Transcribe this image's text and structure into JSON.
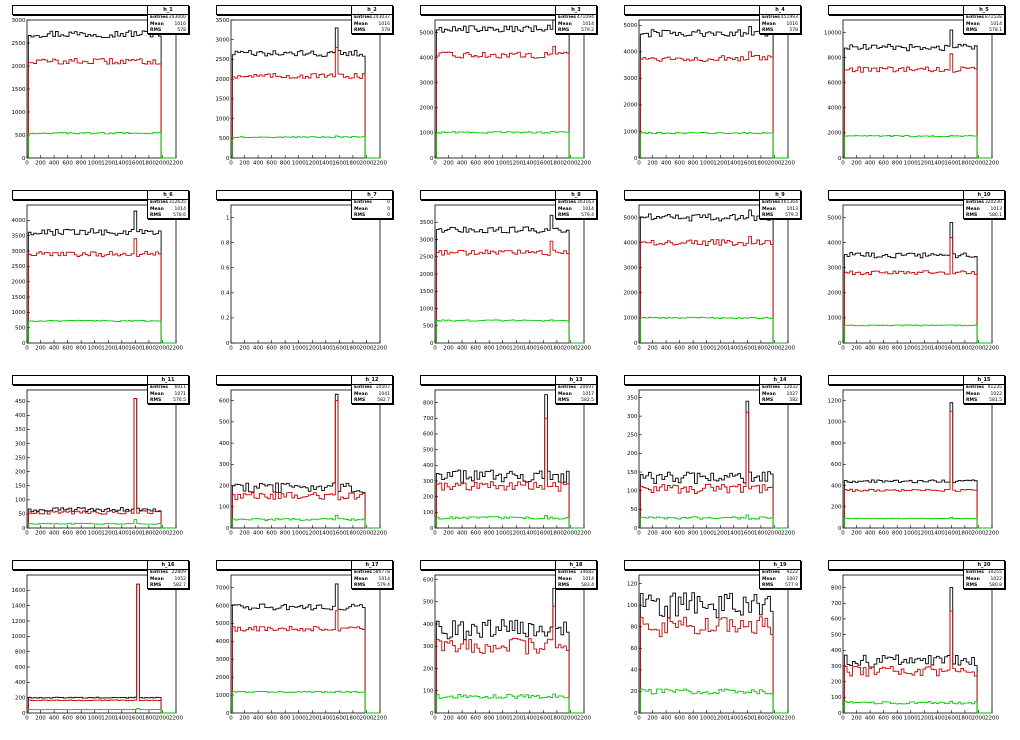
{
  "colors": {
    "total": "#000000",
    "red": "#cc0000",
    "green": "#00cc00",
    "frame": "#000000"
  },
  "chart_data": [
    {
      "type": "line",
      "name": "h_1",
      "title": "",
      "entries": "243000",
      "mean": "1016",
      "rms": "578",
      "ylim": [
        0,
        3000
      ],
      "yticks": [
        0,
        500,
        1000,
        1500,
        2000,
        2500,
        3000
      ],
      "xlim": [
        0,
        2200
      ],
      "xticks": [
        0,
        200,
        400,
        600,
        800,
        1000,
        1200,
        1400,
        1600,
        1800,
        2000,
        2200
      ],
      "xstart": 20,
      "xend": 1980,
      "series": [
        {
          "name": "",
          "level": 2700
        },
        {
          "name": "",
          "level": 2100
        },
        {
          "name": "",
          "level": 540
        }
      ],
      "spike": null
    },
    {
      "type": "line",
      "name": "h_2",
      "title": "",
      "entries": "243037",
      "mean": "1016",
      "rms": "578",
      "ylim": [
        0,
        3500
      ],
      "yticks": [
        0,
        500,
        1000,
        1500,
        2000,
        2500,
        3000,
        3500
      ],
      "xlim": [
        0,
        2200
      ],
      "xticks": [
        0,
        200,
        400,
        600,
        800,
        1000,
        1200,
        1400,
        1600,
        1800,
        2000,
        2200
      ],
      "xstart": 20,
      "xend": 1980,
      "series": [
        {
          "name": "",
          "level": 2650
        },
        {
          "name": "",
          "level": 2080
        },
        {
          "name": "",
          "level": 530
        }
      ],
      "spike": {
        "x": 1550,
        "values": [
          3300,
          2800,
          560
        ]
      }
    },
    {
      "type": "line",
      "name": "h_3",
      "title": "",
      "entries": "471094",
      "mean": "1014",
      "rms": "579.2",
      "ylim": [
        0,
        5500
      ],
      "yticks": [
        0,
        1000,
        2000,
        3000,
        4000,
        5000
      ],
      "xlim": [
        0,
        2200
      ],
      "xticks": [
        0,
        200,
        400,
        600,
        800,
        1000,
        1200,
        1400,
        1600,
        1800,
        2000,
        2200
      ],
      "xstart": 20,
      "xend": 1980,
      "series": [
        {
          "name": "",
          "level": 5150
        },
        {
          "name": "",
          "level": 4100
        },
        {
          "name": "",
          "level": 1020
        }
      ],
      "spike": {
        "x": 1750,
        "values": [
          5500,
          4450,
          1050
        ]
      }
    },
    {
      "type": "line",
      "name": "h_4",
      "title": "",
      "entries": "451993",
      "mean": "1016",
      "rms": "578",
      "ylim": [
        0,
        5200
      ],
      "yticks": [
        0,
        1000,
        2000,
        3000,
        4000,
        5000
      ],
      "xlim": [
        0,
        2200
      ],
      "xticks": [
        0,
        200,
        400,
        600,
        800,
        1000,
        1200,
        1400,
        1600,
        1800,
        2000,
        2200
      ],
      "xstart": 20,
      "xend": 1980,
      "series": [
        {
          "name": "",
          "level": 4700
        },
        {
          "name": "",
          "level": 3750
        },
        {
          "name": "",
          "level": 940
        }
      ],
      "spike": {
        "x": 1620,
        "values": [
          4950,
          4000,
          960
        ]
      }
    },
    {
      "type": "line",
      "name": "h_5",
      "title": "",
      "entries": "871528",
      "mean": "1014",
      "rms": "578.1",
      "ylim": [
        0,
        11000
      ],
      "yticks": [
        0,
        2000,
        4000,
        6000,
        8000,
        10000
      ],
      "xlim": [
        0,
        2200
      ],
      "xticks": [
        0,
        200,
        400,
        600,
        800,
        1000,
        1200,
        1400,
        1600,
        1800,
        2000,
        2200
      ],
      "xstart": 20,
      "xend": 1980,
      "series": [
        {
          "name": "",
          "level": 8800
        },
        {
          "name": "",
          "level": 7050
        },
        {
          "name": "",
          "level": 1750
        }
      ],
      "spike": {
        "x": 1600,
        "values": [
          10200,
          8300,
          1800
        ]
      }
    },
    {
      "type": "line",
      "name": "h_6",
      "title": "",
      "entries": "312635",
      "mean": "1014",
      "rms": "578.6",
      "ylim": [
        0,
        4500
      ],
      "yticks": [
        0,
        500,
        1000,
        1500,
        2000,
        2500,
        3000,
        3500,
        4000
      ],
      "xlim": [
        0,
        2200
      ],
      "xticks": [
        0,
        200,
        400,
        600,
        800,
        1000,
        1200,
        1400,
        1600,
        1800,
        2000,
        2200
      ],
      "xstart": 20,
      "xend": 1980,
      "series": [
        {
          "name": "",
          "level": 3620
        },
        {
          "name": "",
          "level": 2900
        },
        {
          "name": "",
          "level": 720
        }
      ],
      "spike": {
        "x": 1600,
        "values": [
          4300,
          3400,
          740
        ]
      }
    },
    {
      "type": "line",
      "name": "h_7",
      "title": "",
      "entries": "0",
      "mean": "0",
      "rms": "0",
      "ylim": [
        0,
        1.1
      ],
      "yticks": [
        0,
        0.2,
        0.4,
        0.6,
        0.8,
        1
      ],
      "xlim": [
        0,
        2200
      ],
      "xticks": [
        0,
        200,
        400,
        600,
        800,
        1000,
        1200,
        1400,
        1600,
        1800,
        2000,
        2200
      ],
      "xstart": 0,
      "xend": 0,
      "series": [],
      "spike": null
    },
    {
      "type": "line",
      "name": "h_8",
      "title": "",
      "entries": "303163",
      "mean": "1014",
      "rms": "579.4",
      "ylim": [
        0,
        4000
      ],
      "yticks": [
        0,
        500,
        1000,
        1500,
        2000,
        2500,
        3000,
        3500
      ],
      "xlim": [
        0,
        2200
      ],
      "xticks": [
        0,
        200,
        400,
        600,
        800,
        1000,
        1200,
        1400,
        1600,
        1800,
        2000,
        2200
      ],
      "xstart": 20,
      "xend": 1980,
      "series": [
        {
          "name": "",
          "level": 3280
        },
        {
          "name": "",
          "level": 2620
        },
        {
          "name": "",
          "level": 650
        }
      ],
      "spike": {
        "x": 1700,
        "values": [
          3700,
          2950,
          670
        ]
      }
    },
    {
      "type": "line",
      "name": "h_9",
      "title": "",
      "entries": "461364",
      "mean": "1013",
      "rms": "579.3",
      "ylim": [
        0,
        5500
      ],
      "yticks": [
        0,
        1000,
        2000,
        3000,
        4000,
        5000
      ],
      "xlim": [
        0,
        2200
      ],
      "xticks": [
        0,
        200,
        400,
        600,
        800,
        1000,
        1200,
        1400,
        1600,
        1800,
        2000,
        2200
      ],
      "xstart": 20,
      "xend": 1980,
      "series": [
        {
          "name": "",
          "level": 5000
        },
        {
          "name": "",
          "level": 4000
        },
        {
          "name": "",
          "level": 1000
        }
      ],
      "spike": {
        "x": 1650,
        "values": [
          5300,
          4250,
          1020
        ]
      }
    },
    {
      "type": "line",
      "name": "h_10",
      "title": "",
      "entries": "320230",
      "mean": "1013",
      "rms": "580.1",
      "ylim": [
        0,
        5500
      ],
      "yticks": [
        0,
        1000,
        2000,
        3000,
        4000,
        5000
      ],
      "xlim": [
        0,
        2200
      ],
      "xticks": [
        0,
        200,
        400,
        600,
        800,
        1000,
        1200,
        1400,
        1600,
        1800,
        2000,
        2200
      ],
      "xstart": 20,
      "xend": 1980,
      "series": [
        {
          "name": "",
          "level": 3500
        },
        {
          "name": "",
          "level": 2800
        },
        {
          "name": "",
          "level": 700
        }
      ],
      "spike": {
        "x": 1600,
        "values": [
          4800,
          4200,
          720
        ]
      }
    },
    {
      "type": "line",
      "name": "h_11",
      "title": "",
      "entries": "6011",
      "mean": "1071",
      "rms": "576.5",
      "ylim": [
        0,
        490
      ],
      "yticks": [
        0,
        50,
        100,
        150,
        200,
        250,
        300,
        350,
        400,
        450
      ],
      "xlim": [
        0,
        2200
      ],
      "xticks": [
        0,
        200,
        400,
        600,
        800,
        1000,
        1200,
        1400,
        1600,
        1800,
        2000,
        2200
      ],
      "xstart": 20,
      "xend": 1980,
      "series": [
        {
          "name": "",
          "level": 65
        },
        {
          "name": "",
          "level": 55
        },
        {
          "name": "",
          "level": 15
        }
      ],
      "spike": {
        "x": 1600,
        "values": [
          460,
          460,
          30
        ]
      }
    },
    {
      "type": "line",
      "name": "h_12",
      "title": "",
      "entries": "10507",
      "mean": "1041",
      "rms": "582.7",
      "ylim": [
        0,
        650
      ],
      "yticks": [
        0,
        100,
        200,
        300,
        400,
        500,
        600
      ],
      "xlim": [
        0,
        2200
      ],
      "xticks": [
        0,
        200,
        400,
        600,
        800,
        1000,
        1200,
        1400,
        1600,
        1800,
        2000,
        2200
      ],
      "xstart": 20,
      "xend": 1980,
      "series": [
        {
          "name": "",
          "level": 190
        },
        {
          "name": "",
          "level": 150
        },
        {
          "name": "",
          "level": 40
        }
      ],
      "spike": {
        "x": 1550,
        "values": [
          630,
          600,
          60
        ]
      }
    },
    {
      "type": "line",
      "name": "h_13",
      "title": "",
      "entries": "20697",
      "mean": "1017",
      "rms": "582.5",
      "ylim": [
        0,
        880
      ],
      "yticks": [
        0,
        100,
        200,
        300,
        400,
        500,
        600,
        700,
        800
      ],
      "xlim": [
        0,
        2200
      ],
      "xticks": [
        0,
        200,
        400,
        600,
        800,
        1000,
        1200,
        1400,
        1600,
        1800,
        2000,
        2200
      ],
      "xstart": 20,
      "xend": 1980,
      "series": [
        {
          "name": "",
          "level": 330
        },
        {
          "name": "",
          "level": 265
        },
        {
          "name": "",
          "level": 65
        }
      ],
      "spike": {
        "x": 1650,
        "values": [
          850,
          700,
          80
        ]
      }
    },
    {
      "type": "line",
      "name": "h_14",
      "title": "",
      "entries": "12632",
      "mean": "1027",
      "rms": "582",
      "ylim": [
        0,
        370
      ],
      "yticks": [
        0,
        50,
        100,
        150,
        200,
        250,
        300,
        350
      ],
      "xlim": [
        0,
        2200
      ],
      "xticks": [
        0,
        200,
        400,
        600,
        800,
        1000,
        1200,
        1400,
        1600,
        1800,
        2000,
        2200
      ],
      "xstart": 20,
      "xend": 1980,
      "series": [
        {
          "name": "",
          "level": 135
        },
        {
          "name": "",
          "level": 105
        },
        {
          "name": "",
          "level": 27
        }
      ],
      "spike": {
        "x": 1600,
        "values": [
          340,
          310,
          35
        ]
      }
    },
    {
      "type": "line",
      "name": "h_15",
      "title": "",
      "entries": "41235",
      "mean": "1022",
      "rms": "581.5",
      "ylim": [
        0,
        1300
      ],
      "yticks": [
        0,
        200,
        400,
        600,
        800,
        1000,
        1200
      ],
      "xlim": [
        0,
        2200
      ],
      "xticks": [
        0,
        200,
        400,
        600,
        800,
        1000,
        1200,
        1400,
        1600,
        1800,
        2000,
        2200
      ],
      "xstart": 20,
      "xend": 1980,
      "series": [
        {
          "name": "",
          "level": 440
        },
        {
          "name": "",
          "level": 355
        },
        {
          "name": "",
          "level": 90
        }
      ],
      "spike": {
        "x": 1600,
        "values": [
          1180,
          1100,
          100
        ]
      }
    },
    {
      "type": "line",
      "name": "h_16",
      "title": "",
      "entries": "22809",
      "mean": "1052",
      "rms": "582.7",
      "ylim": [
        0,
        1800
      ],
      "yticks": [
        0,
        200,
        400,
        600,
        800,
        1000,
        1200,
        1400,
        1600
      ],
      "xlim": [
        0,
        2200
      ],
      "xticks": [
        0,
        200,
        400,
        600,
        800,
        1000,
        1200,
        1400,
        1600,
        1800,
        2000,
        2200
      ],
      "xstart": 20,
      "xend": 1980,
      "series": [
        {
          "name": "",
          "level": 200
        },
        {
          "name": "",
          "level": 165
        },
        {
          "name": "",
          "level": 45
        }
      ],
      "spike": {
        "x": 1650,
        "values": [
          1680,
          1680,
          60
        ]
      }
    },
    {
      "type": "line",
      "name": "h_17",
      "title": "",
      "entries": "586778",
      "mean": "1014",
      "rms": "579.4",
      "ylim": [
        0,
        7700
      ],
      "yticks": [
        0,
        1000,
        2000,
        3000,
        4000,
        5000,
        6000,
        7000
      ],
      "xlim": [
        0,
        2200
      ],
      "xticks": [
        0,
        200,
        400,
        600,
        800,
        1000,
        1200,
        1400,
        1600,
        1800,
        2000,
        2200
      ],
      "xstart": 20,
      "xend": 1980,
      "series": [
        {
          "name": "",
          "level": 5900
        },
        {
          "name": "",
          "level": 4700
        },
        {
          "name": "",
          "level": 1180
        }
      ],
      "spike": {
        "x": 1550,
        "values": [
          7200,
          5700,
          1200
        ]
      }
    },
    {
      "type": "line",
      "name": "h_18",
      "title": "",
      "entries": "34682",
      "mean": "1014",
      "rms": "583.4",
      "ylim": [
        0,
        620
      ],
      "yticks": [
        0,
        100,
        200,
        300,
        400,
        500,
        600
      ],
      "xlim": [
        0,
        2200
      ],
      "xticks": [
        0,
        200,
        400,
        600,
        800,
        1000,
        1200,
        1400,
        1600,
        1800,
        2000,
        2200
      ],
      "xstart": 20,
      "xend": 1980,
      "series": [
        {
          "name": "",
          "level": 375
        },
        {
          "name": "",
          "level": 300
        },
        {
          "name": "",
          "level": 75
        }
      ],
      "spike": {
        "x": 1750,
        "values": [
          560,
          480,
          85
        ]
      }
    },
    {
      "type": "line",
      "name": "h_19",
      "title": "",
      "entries": "9222",
      "mean": "1007",
      "rms": "577.9",
      "ylim": [
        0,
        128
      ],
      "yticks": [
        0,
        20,
        40,
        60,
        80,
        100,
        120
      ],
      "xlim": [
        0,
        2200
      ],
      "xticks": [
        0,
        200,
        400,
        600,
        800,
        1000,
        1200,
        1400,
        1600,
        1800,
        2000,
        2200
      ],
      "xstart": 20,
      "xend": 1980,
      "series": [
        {
          "name": "",
          "level": 100
        },
        {
          "name": "",
          "level": 80
        },
        {
          "name": "",
          "level": 20
        }
      ],
      "spike": null
    },
    {
      "type": "line",
      "name": "h_20",
      "title": "",
      "entries": "30255",
      "mean": "1022",
      "rms": "580.8",
      "ylim": [
        0,
        880
      ],
      "yticks": [
        0,
        100,
        200,
        300,
        400,
        500,
        600,
        700,
        800
      ],
      "xlim": [
        0,
        2200
      ],
      "xticks": [
        0,
        200,
        400,
        600,
        800,
        1000,
        1200,
        1400,
        1600,
        1800,
        2000,
        2200
      ],
      "xstart": 20,
      "xend": 1980,
      "series": [
        {
          "name": "",
          "level": 330
        },
        {
          "name": "",
          "level": 265
        },
        {
          "name": "",
          "level": 65
        }
      ],
      "spike": {
        "x": 1600,
        "values": [
          800,
          650,
          75
        ]
      }
    }
  ]
}
